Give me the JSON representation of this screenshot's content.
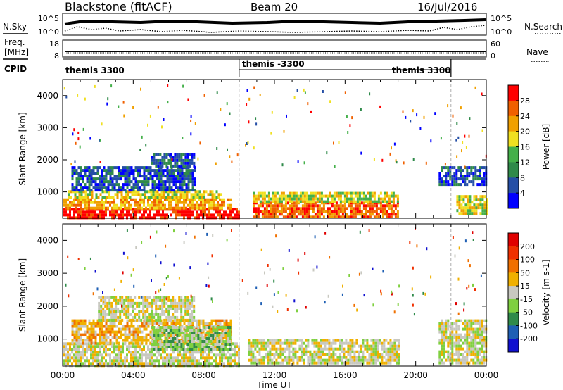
{
  "header": {
    "radar": "Blackstone (fitACF)",
    "beam": "Beam 20",
    "date": "16/Jul/2016"
  },
  "top_panels": {
    "nsky_label": "N.Sky",
    "nsky_ticks": [
      "10^5",
      "10^0"
    ],
    "nsearch_label": "N.Search",
    "nsearch_ticks": [
      "10^5",
      "10^0"
    ],
    "freq_label_1": "Freq.",
    "freq_label_2": "[MHz]",
    "freq_ticks": [
      "18",
      "8"
    ],
    "nave_label": "Nave",
    "nave_ticks": [
      "60",
      "0"
    ],
    "cpid_label": "CPID",
    "cpid_segments": [
      {
        "label": "themis 3300",
        "start": 0,
        "end": 10
      },
      {
        "label": "themis -3300",
        "start": 10,
        "end": 22
      },
      {
        "label": "themis 3300",
        "start": 22,
        "end": 24
      }
    ]
  },
  "chart_data": [
    {
      "type": "heatmap",
      "title": "Power",
      "ylabel": "Slant Range [km]",
      "xlabel": "",
      "xlim": [
        0,
        24
      ],
      "ylim": [
        180,
        4500
      ],
      "yticks": [
        "1000",
        "2000",
        "3000",
        "4000"
      ],
      "xticks": [
        "00:00",
        "04:00",
        "08:00",
        "12:00",
        "16:00",
        "20:00",
        "00:00"
      ],
      "colorbar_label": "Power [dB]",
      "colorbar_ticks": [
        "28",
        "24",
        "20",
        "16",
        "12",
        "8",
        "4"
      ],
      "colors": [
        "#0000ff",
        "#244ea6",
        "#2f8a4a",
        "#44b04a",
        "#f0e020",
        "#f0a000",
        "#f06000",
        "#ff0000"
      ],
      "regions": [
        {
          "t0": 0.0,
          "t1": 10.0,
          "r0": 200,
          "r1": 500,
          "level": 7
        },
        {
          "t0": 0.0,
          "t1": 9.5,
          "r0": 500,
          "r1": 800,
          "level": 5
        },
        {
          "t0": 0.3,
          "t1": 9.0,
          "r0": 800,
          "r1": 1050,
          "level": 4
        },
        {
          "t0": 0.5,
          "t1": 7.5,
          "r0": 1050,
          "r1": 1800,
          "level": 1
        },
        {
          "t0": 5.0,
          "t1": 7.5,
          "r0": 1800,
          "r1": 2200,
          "level": 1
        },
        {
          "t0": 10.8,
          "t1": 19.0,
          "r0": 250,
          "r1": 700,
          "level": 6
        },
        {
          "t0": 10.8,
          "t1": 19.0,
          "r0": 700,
          "r1": 1000,
          "level": 4
        },
        {
          "t0": 22.3,
          "t1": 24.0,
          "r0": 350,
          "r1": 900,
          "level": 4
        },
        {
          "t0": 21.3,
          "t1": 24.0,
          "r0": 1200,
          "r1": 1800,
          "level": 1
        }
      ]
    },
    {
      "type": "heatmap",
      "title": "Velocity",
      "ylabel": "Slant Range [km]",
      "xlabel": "Time UT",
      "xlim": [
        0,
        24
      ],
      "ylim": [
        180,
        4500
      ],
      "yticks": [
        "1000",
        "2000",
        "3000",
        "4000"
      ],
      "xticks": [
        "00:00",
        "04:00",
        "08:00",
        "12:00",
        "16:00",
        "20:00",
        "00:00"
      ],
      "colorbar_label": "Velocity [m s-1]",
      "colorbar_ticks": [
        "200",
        "100",
        "50",
        "15",
        "-15",
        "-50",
        "-100",
        "-200"
      ],
      "colors": [
        "#1010d0",
        "#1e5fb4",
        "#2f8a4a",
        "#7fd040",
        "#c8c8c0",
        "#f0b000",
        "#f07000",
        "#f03000",
        "#e00000"
      ],
      "regions": [
        {
          "t0": 0.0,
          "t1": 10.0,
          "r0": 200,
          "r1": 900,
          "level": 4
        },
        {
          "t0": 0.5,
          "t1": 9.5,
          "r0": 900,
          "r1": 1600,
          "level": 5
        },
        {
          "t0": 5.0,
          "t1": 9.5,
          "r0": 700,
          "r1": 1400,
          "level": 3
        },
        {
          "t0": 2.0,
          "t1": 7.5,
          "r0": 1600,
          "r1": 2300,
          "level": 4
        },
        {
          "t0": 10.5,
          "t1": 19.0,
          "r0": 250,
          "r1": 1000,
          "level": 4
        },
        {
          "t0": 21.3,
          "t1": 24.0,
          "r0": 300,
          "r1": 1600,
          "level": 4
        }
      ]
    }
  ]
}
